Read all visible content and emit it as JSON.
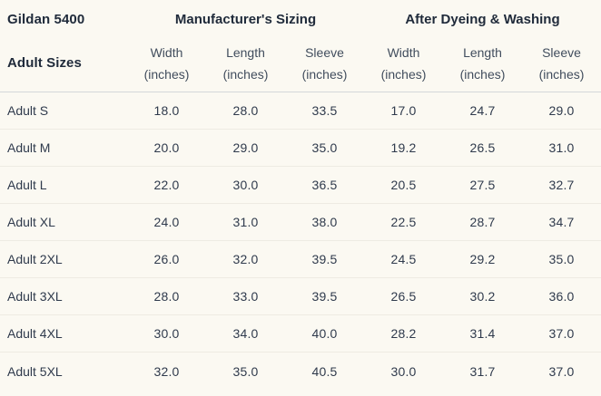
{
  "colors": {
    "background": "#fbf9f2",
    "text_bold": "#1f2a3a",
    "text_data": "#2f3a4c",
    "text_subheader": "#414d5d",
    "divider_header": "#d3d8da",
    "divider_row": "#eeebe3"
  },
  "table": {
    "title": "Gildan 5400",
    "subtitle": "Adult Sizes",
    "group1": "Manufacturer's Sizing",
    "group2": "After Dyeing & Washing",
    "columns": [
      {
        "line1": "Width",
        "line2": "(inches)"
      },
      {
        "line1": "Length",
        "line2": "(inches)"
      },
      {
        "line1": "Sleeve",
        "line2": "(inches)"
      },
      {
        "line1": "Width",
        "line2": "(inches)"
      },
      {
        "line1": "Length",
        "line2": "(inches)"
      },
      {
        "line1": "Sleeve",
        "line2": "(inches)"
      }
    ],
    "rows": [
      {
        "size": "Adult S",
        "values": [
          "18.0",
          "28.0",
          "33.5",
          "17.0",
          "24.7",
          "29.0"
        ]
      },
      {
        "size": "Adult M",
        "values": [
          "20.0",
          "29.0",
          "35.0",
          "19.2",
          "26.5",
          "31.0"
        ]
      },
      {
        "size": "Adult L",
        "values": [
          "22.0",
          "30.0",
          "36.5",
          "20.5",
          "27.5",
          "32.7"
        ]
      },
      {
        "size": "Adult XL",
        "values": [
          "24.0",
          "31.0",
          "38.0",
          "22.5",
          "28.7",
          "34.7"
        ]
      },
      {
        "size": "Adult 2XL",
        "values": [
          "26.0",
          "32.0",
          "39.5",
          "24.5",
          "29.2",
          "35.0"
        ]
      },
      {
        "size": "Adult 3XL",
        "values": [
          "28.0",
          "33.0",
          "39.5",
          "26.5",
          "30.2",
          "36.0"
        ]
      },
      {
        "size": "Adult 4XL",
        "values": [
          "30.0",
          "34.0",
          "40.0",
          "28.2",
          "31.4",
          "37.0"
        ]
      },
      {
        "size": "Adult 5XL",
        "values": [
          "32.0",
          "35.0",
          "40.5",
          "30.0",
          "31.7",
          "37.0"
        ]
      }
    ]
  },
  "chart_data": {
    "type": "table",
    "title": "Gildan 5400 Adult Sizes",
    "column_groups": [
      "Manufacturer's Sizing",
      "After Dyeing & Washing"
    ],
    "columns": [
      "Manufacturer Width (inches)",
      "Manufacturer Length (inches)",
      "Manufacturer Sleeve (inches)",
      "After Dyeing & Washing Width (inches)",
      "After Dyeing & Washing Length (inches)",
      "After Dyeing & Washing Sleeve (inches)"
    ],
    "categories": [
      "Adult S",
      "Adult M",
      "Adult L",
      "Adult XL",
      "Adult 2XL",
      "Adult 3XL",
      "Adult 4XL",
      "Adult 5XL"
    ],
    "series": [
      {
        "name": "Manufacturer Width (inches)",
        "values": [
          18.0,
          20.0,
          22.0,
          24.0,
          26.0,
          28.0,
          30.0,
          32.0
        ]
      },
      {
        "name": "Manufacturer Length (inches)",
        "values": [
          28.0,
          29.0,
          30.0,
          31.0,
          32.0,
          33.0,
          34.0,
          35.0
        ]
      },
      {
        "name": "Manufacturer Sleeve (inches)",
        "values": [
          33.5,
          35.0,
          36.5,
          38.0,
          39.5,
          39.5,
          40.0,
          40.5
        ]
      },
      {
        "name": "After Dyeing & Washing Width (inches)",
        "values": [
          17.0,
          19.2,
          20.5,
          22.5,
          24.5,
          26.5,
          28.2,
          30.0
        ]
      },
      {
        "name": "After Dyeing & Washing Length (inches)",
        "values": [
          24.7,
          26.5,
          27.5,
          28.7,
          29.2,
          30.2,
          31.4,
          31.7
        ]
      },
      {
        "name": "After Dyeing & Washing Sleeve (inches)",
        "values": [
          29.0,
          31.0,
          32.7,
          34.7,
          35.0,
          36.0,
          37.0,
          37.0
        ]
      }
    ]
  }
}
